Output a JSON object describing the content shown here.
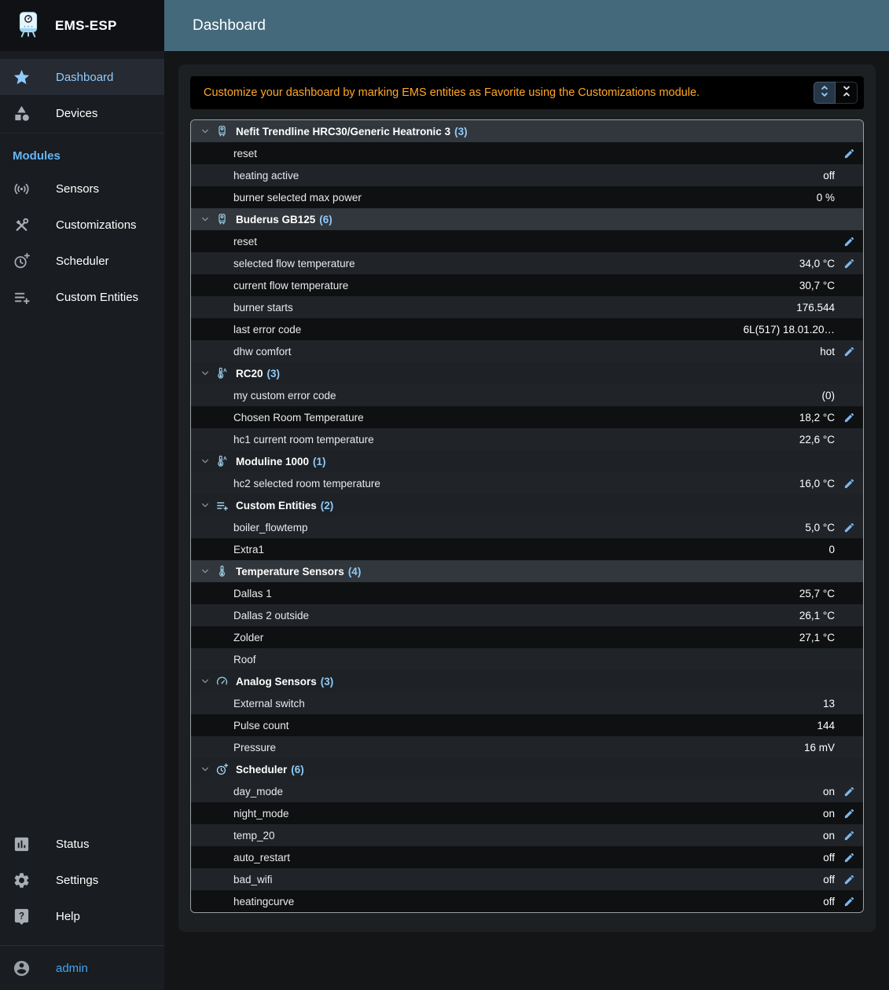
{
  "sidebar": {
    "app_name": "EMS-ESP",
    "main_items": [
      {
        "label": "Dashboard",
        "icon": "star",
        "active": true
      },
      {
        "label": "Devices",
        "icon": "category",
        "active": false
      }
    ],
    "modules_label": "Modules",
    "module_items": [
      {
        "label": "Sensors",
        "icon": "sensors"
      },
      {
        "label": "Customizations",
        "icon": "tools"
      },
      {
        "label": "Scheduler",
        "icon": "clock-plus"
      },
      {
        "label": "Custom Entities",
        "icon": "playlist-plus"
      }
    ],
    "footer_items": [
      {
        "label": "Status",
        "icon": "chart"
      },
      {
        "label": "Settings",
        "icon": "gear"
      },
      {
        "label": "Help",
        "icon": "help"
      }
    ],
    "user": {
      "label": "admin",
      "icon": "account"
    }
  },
  "header": {
    "title": "Dashboard"
  },
  "notice": {
    "text": "Customize your dashboard by marking EMS entities as Favorite using the Customizations module.",
    "buttons": [
      {
        "name": "expand-all",
        "icon": "unfold-more",
        "selected": true
      },
      {
        "name": "collapse-all",
        "icon": "unfold-less",
        "selected": false
      }
    ]
  },
  "dashboard": {
    "groups": [
      {
        "name": "Nefit Trendline HRC30/Generic Heatronic 3",
        "count": 3,
        "icon": "boiler",
        "rows": [
          {
            "label": "reset",
            "value": "",
            "editable": true
          },
          {
            "label": "heating active",
            "value": "off",
            "editable": false
          },
          {
            "label": "burner selected max power",
            "value": "0 %",
            "editable": false
          }
        ]
      },
      {
        "name": "Buderus GB125",
        "count": 6,
        "icon": "boiler",
        "rows": [
          {
            "label": "reset",
            "value": "",
            "editable": true
          },
          {
            "label": "selected flow temperature",
            "value": "34,0 °C",
            "editable": true
          },
          {
            "label": "current flow temperature",
            "value": "30,7 °C",
            "editable": false
          },
          {
            "label": "burner starts",
            "value": "176.544",
            "editable": false
          },
          {
            "label": "last error code",
            "value": "6L(517) 18.01.20…",
            "editable": false
          },
          {
            "label": "dhw comfort",
            "value": "hot",
            "editable": true
          }
        ]
      },
      {
        "name": "RC20",
        "count": 3,
        "icon": "thermostat",
        "rows": [
          {
            "label": "my custom error code",
            "value": "(0)",
            "editable": false
          },
          {
            "label": "Chosen Room Temperature",
            "value": "18,2 °C",
            "editable": true
          },
          {
            "label": "hc1 current room temperature",
            "value": "22,6 °C",
            "editable": false
          }
        ]
      },
      {
        "name": "Moduline 1000",
        "count": 1,
        "icon": "thermostat",
        "rows": [
          {
            "label": "hc2 selected room temperature",
            "value": "16,0 °C",
            "editable": true
          }
        ]
      },
      {
        "name": "Custom Entities",
        "count": 2,
        "icon": "playlist-plus-blue",
        "rows": [
          {
            "label": "boiler_flowtemp",
            "value": "5,0 °C",
            "editable": true
          },
          {
            "label": "Extra1",
            "value": "0",
            "editable": false
          }
        ]
      },
      {
        "name": "Temperature Sensors",
        "count": 4,
        "icon": "thermometer",
        "rows": [
          {
            "label": "Dallas 1",
            "value": "25,7 °C",
            "editable": false
          },
          {
            "label": "Dallas 2 outside",
            "value": "26,1 °C",
            "editable": false
          },
          {
            "label": "Zolder",
            "value": "27,1 °C",
            "editable": false
          },
          {
            "label": "Roof",
            "value": "",
            "editable": false
          }
        ]
      },
      {
        "name": "Analog Sensors",
        "count": 3,
        "icon": "gauge",
        "rows": [
          {
            "label": "External switch",
            "value": "13",
            "editable": false
          },
          {
            "label": "Pulse count",
            "value": "144",
            "editable": false
          },
          {
            "label": "Pressure",
            "value": "16 mV",
            "editable": false
          }
        ]
      },
      {
        "name": "Scheduler",
        "count": 6,
        "icon": "clock-plus-blue",
        "rows": [
          {
            "label": "day_mode",
            "value": "on",
            "editable": true
          },
          {
            "label": "night_mode",
            "value": "on",
            "editable": true
          },
          {
            "label": "temp_20",
            "value": "on",
            "editable": true
          },
          {
            "label": "auto_restart",
            "value": "off",
            "editable": true
          },
          {
            "label": "bad_wifi",
            "value": "off",
            "editable": true
          },
          {
            "label": "heatingcurve",
            "value": "off",
            "editable": true
          }
        ]
      }
    ]
  },
  "colors": {
    "accent_blue": "#90caf9",
    "notice_orange": "#ffa726",
    "header_teal": "#44697b",
    "edit_icon_blue": "#79b8f3",
    "device_icon_blue": "#a5d8f3"
  }
}
